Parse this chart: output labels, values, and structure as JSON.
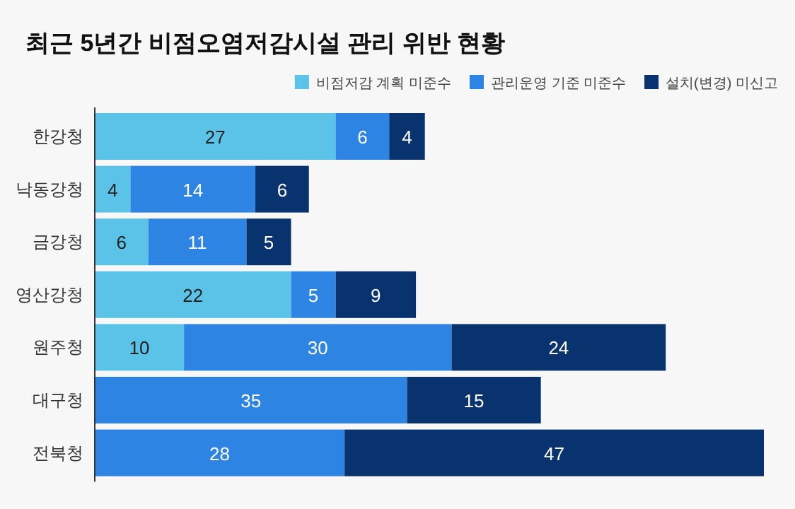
{
  "chart_data": {
    "type": "bar",
    "orientation": "horizontal",
    "stacked": true,
    "data_labels": true,
    "legend": "top right",
    "title": "최근 5년간 비점오염저감시설 관리 위반 현황",
    "categories": [
      "한강청",
      "낙동강청",
      "금강청",
      "영산강청",
      "원주청",
      "대구청",
      "전북청"
    ],
    "series": [
      {
        "name": "비점저감 계획 미준수",
        "color": "#5bc3e8",
        "values": [
          27,
          4,
          6,
          22,
          10,
          null,
          null
        ]
      },
      {
        "name": "관리운영 기준 미준수",
        "color": "#2e84e2",
        "values": [
          6,
          14,
          11,
          5,
          30,
          35,
          28
        ]
      },
      {
        "name": "설치(변경) 미신고",
        "color": "#08336e",
        "values": [
          4,
          6,
          5,
          9,
          24,
          15,
          47
        ]
      }
    ]
  }
}
